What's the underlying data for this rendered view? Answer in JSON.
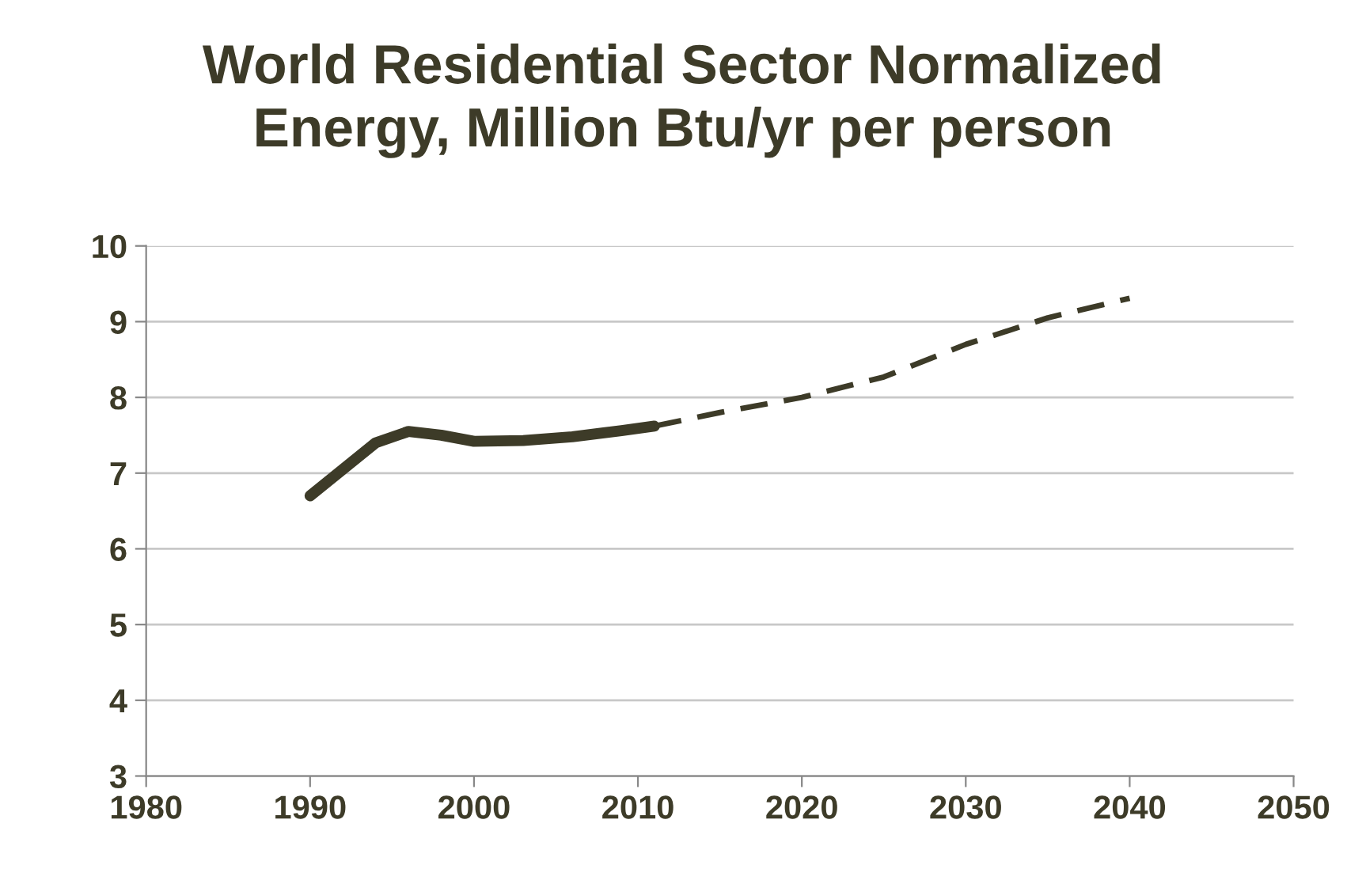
{
  "chart_data": {
    "type": "line",
    "title": "World Residential Sector Normalized\nEnergy, Million Btu/yr per person",
    "series": [
      {
        "color": "#3d3b28",
        "line_style": "solid",
        "x": [
          1990,
          1992,
          1994,
          1996,
          1998,
          2000,
          2003,
          2006,
          2009,
          2011
        ],
        "values": [
          6.7,
          7.05,
          7.4,
          7.55,
          7.5,
          7.42,
          7.43,
          7.48,
          7.56,
          7.62
        ]
      },
      {
        "color": "#3d3b28",
        "line_style": "dashed",
        "x": [
          2011,
          2015,
          2020,
          2025,
          2030,
          2035,
          2040
        ],
        "values": [
          7.62,
          7.8,
          8.0,
          8.27,
          8.7,
          9.05,
          9.31
        ]
      }
    ],
    "xlim": [
      1980,
      2050
    ],
    "xticks": [
      1980,
      1990,
      2000,
      2010,
      2020,
      2030,
      2040,
      2050
    ],
    "ylim": [
      3,
      10
    ],
    "yticks": [
      3,
      4,
      5,
      6,
      7,
      8,
      9,
      10
    ],
    "grid": "y",
    "marker": "none",
    "legend": false
  }
}
